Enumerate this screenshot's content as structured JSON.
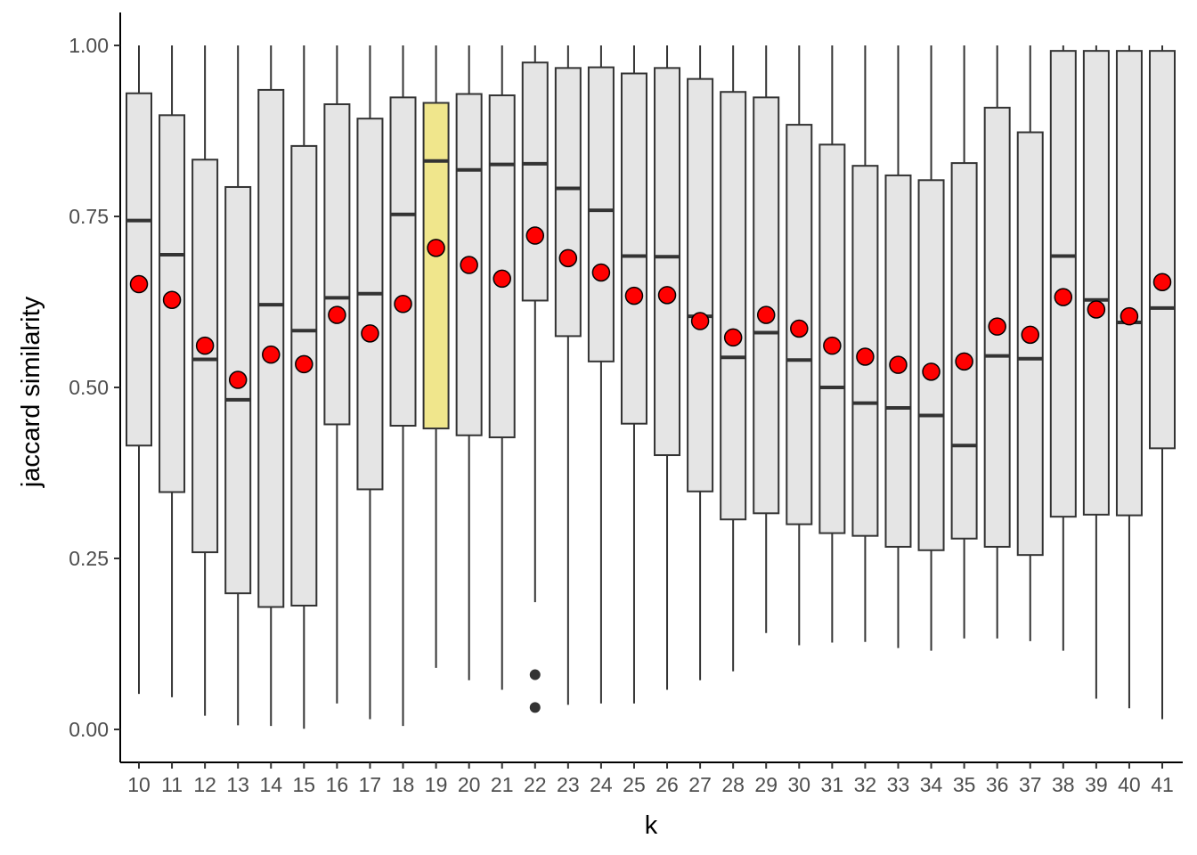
{
  "chart_data": {
    "type": "box",
    "xlabel": "k",
    "ylabel": "jaccard similarity",
    "ylim": [
      -0.047,
      1.047
    ],
    "yticks": [
      0.0,
      0.25,
      0.5,
      0.75,
      1.0
    ],
    "ytick_labels": [
      "0.00",
      "0.25",
      "0.50",
      "0.75",
      "1.00"
    ],
    "grid": false,
    "legend": "none",
    "highlight_category": "19",
    "colors": {
      "box_fill": "#e5e5e5",
      "highlight_fill": "#f0e68c",
      "stroke": "#333333",
      "mean_point": "#ff0000",
      "axis": "#000000"
    },
    "categories": [
      "10",
      "11",
      "12",
      "13",
      "14",
      "15",
      "16",
      "17",
      "18",
      "19",
      "20",
      "21",
      "22",
      "23",
      "24",
      "25",
      "26",
      "27",
      "28",
      "29",
      "30",
      "31",
      "32",
      "33",
      "34",
      "35",
      "36",
      "37",
      "38",
      "39",
      "40",
      "41"
    ],
    "boxes": [
      {
        "k": "10",
        "min": 0.052,
        "q1": 0.415,
        "median": 0.744,
        "q3": 0.93,
        "max": 1.0,
        "mean": 0.651,
        "outliers": []
      },
      {
        "k": "11",
        "min": 0.047,
        "q1": 0.347,
        "median": 0.694,
        "q3": 0.898,
        "max": 1.0,
        "mean": 0.628,
        "outliers": []
      },
      {
        "k": "12",
        "min": 0.02,
        "q1": 0.259,
        "median": 0.541,
        "q3": 0.833,
        "max": 1.0,
        "mean": 0.561,
        "outliers": []
      },
      {
        "k": "13",
        "min": 0.006,
        "q1": 0.199,
        "median": 0.482,
        "q3": 0.793,
        "max": 1.0,
        "mean": 0.511,
        "outliers": []
      },
      {
        "k": "14",
        "min": 0.005,
        "q1": 0.179,
        "median": 0.621,
        "q3": 0.935,
        "max": 1.0,
        "mean": 0.548,
        "outliers": []
      },
      {
        "k": "15",
        "min": 0.001,
        "q1": 0.181,
        "median": 0.583,
        "q3": 0.853,
        "max": 1.0,
        "mean": 0.534,
        "outliers": []
      },
      {
        "k": "16",
        "min": 0.038,
        "q1": 0.446,
        "median": 0.631,
        "q3": 0.914,
        "max": 1.0,
        "mean": 0.606,
        "outliers": []
      },
      {
        "k": "17",
        "min": 0.015,
        "q1": 0.351,
        "median": 0.637,
        "q3": 0.893,
        "max": 1.0,
        "mean": 0.579,
        "outliers": []
      },
      {
        "k": "18",
        "min": 0.005,
        "q1": 0.444,
        "median": 0.753,
        "q3": 0.924,
        "max": 1.0,
        "mean": 0.622,
        "outliers": []
      },
      {
        "k": "19",
        "min": 0.09,
        "q1": 0.44,
        "median": 0.831,
        "q3": 0.916,
        "max": 1.0,
        "mean": 0.704,
        "outliers": []
      },
      {
        "k": "20",
        "min": 0.072,
        "q1": 0.43,
        "median": 0.818,
        "q3": 0.929,
        "max": 1.0,
        "mean": 0.679,
        "outliers": []
      },
      {
        "k": "21",
        "min": 0.058,
        "q1": 0.427,
        "median": 0.826,
        "q3": 0.927,
        "max": 1.0,
        "mean": 0.659,
        "outliers": []
      },
      {
        "k": "22",
        "min": 0.186,
        "q1": 0.627,
        "median": 0.827,
        "q3": 0.975,
        "max": 1.0,
        "mean": 0.722,
        "outliers": [
          0.08,
          0.032
        ]
      },
      {
        "k": "23",
        "min": 0.036,
        "q1": 0.575,
        "median": 0.791,
        "q3": 0.967,
        "max": 1.0,
        "mean": 0.689,
        "outliers": []
      },
      {
        "k": "24",
        "min": 0.038,
        "q1": 0.538,
        "median": 0.759,
        "q3": 0.968,
        "max": 1.0,
        "mean": 0.668,
        "outliers": []
      },
      {
        "k": "25",
        "min": 0.038,
        "q1": 0.447,
        "median": 0.692,
        "q3": 0.959,
        "max": 1.0,
        "mean": 0.634,
        "outliers": []
      },
      {
        "k": "26",
        "min": 0.058,
        "q1": 0.401,
        "median": 0.691,
        "q3": 0.967,
        "max": 1.0,
        "mean": 0.635,
        "outliers": []
      },
      {
        "k": "27",
        "min": 0.072,
        "q1": 0.348,
        "median": 0.604,
        "q3": 0.951,
        "max": 1.0,
        "mean": 0.597,
        "outliers": []
      },
      {
        "k": "28",
        "min": 0.085,
        "q1": 0.307,
        "median": 0.544,
        "q3": 0.932,
        "max": 1.0,
        "mean": 0.573,
        "outliers": []
      },
      {
        "k": "29",
        "min": 0.141,
        "q1": 0.316,
        "median": 0.58,
        "q3": 0.924,
        "max": 1.0,
        "mean": 0.606,
        "outliers": []
      },
      {
        "k": "30",
        "min": 0.123,
        "q1": 0.3,
        "median": 0.54,
        "q3": 0.884,
        "max": 1.0,
        "mean": 0.586,
        "outliers": []
      },
      {
        "k": "31",
        "min": 0.127,
        "q1": 0.287,
        "median": 0.5,
        "q3": 0.855,
        "max": 1.0,
        "mean": 0.561,
        "outliers": []
      },
      {
        "k": "32",
        "min": 0.128,
        "q1": 0.283,
        "median": 0.477,
        "q3": 0.824,
        "max": 1.0,
        "mean": 0.545,
        "outliers": []
      },
      {
        "k": "33",
        "min": 0.119,
        "q1": 0.267,
        "median": 0.47,
        "q3": 0.81,
        "max": 1.0,
        "mean": 0.533,
        "outliers": []
      },
      {
        "k": "34",
        "min": 0.115,
        "q1": 0.262,
        "median": 0.459,
        "q3": 0.803,
        "max": 1.0,
        "mean": 0.523,
        "outliers": []
      },
      {
        "k": "35",
        "min": 0.133,
        "q1": 0.279,
        "median": 0.415,
        "q3": 0.828,
        "max": 1.0,
        "mean": 0.538,
        "outliers": []
      },
      {
        "k": "36",
        "min": 0.133,
        "q1": 0.267,
        "median": 0.546,
        "q3": 0.909,
        "max": 1.0,
        "mean": 0.589,
        "outliers": []
      },
      {
        "k": "37",
        "min": 0.129,
        "q1": 0.255,
        "median": 0.542,
        "q3": 0.873,
        "max": 1.0,
        "mean": 0.577,
        "outliers": []
      },
      {
        "k": "38",
        "min": 0.115,
        "q1": 0.311,
        "median": 0.692,
        "q3": 0.992,
        "max": 1.0,
        "mean": 0.632,
        "outliers": []
      },
      {
        "k": "39",
        "min": 0.045,
        "q1": 0.314,
        "median": 0.628,
        "q3": 0.992,
        "max": 1.0,
        "mean": 0.614,
        "outliers": []
      },
      {
        "k": "40",
        "min": 0.031,
        "q1": 0.313,
        "median": 0.595,
        "q3": 0.992,
        "max": 1.0,
        "mean": 0.604,
        "outliers": []
      },
      {
        "k": "41",
        "min": 0.015,
        "q1": 0.411,
        "median": 0.616,
        "q3": 0.992,
        "max": 1.0,
        "mean": 0.654,
        "outliers": []
      }
    ]
  }
}
